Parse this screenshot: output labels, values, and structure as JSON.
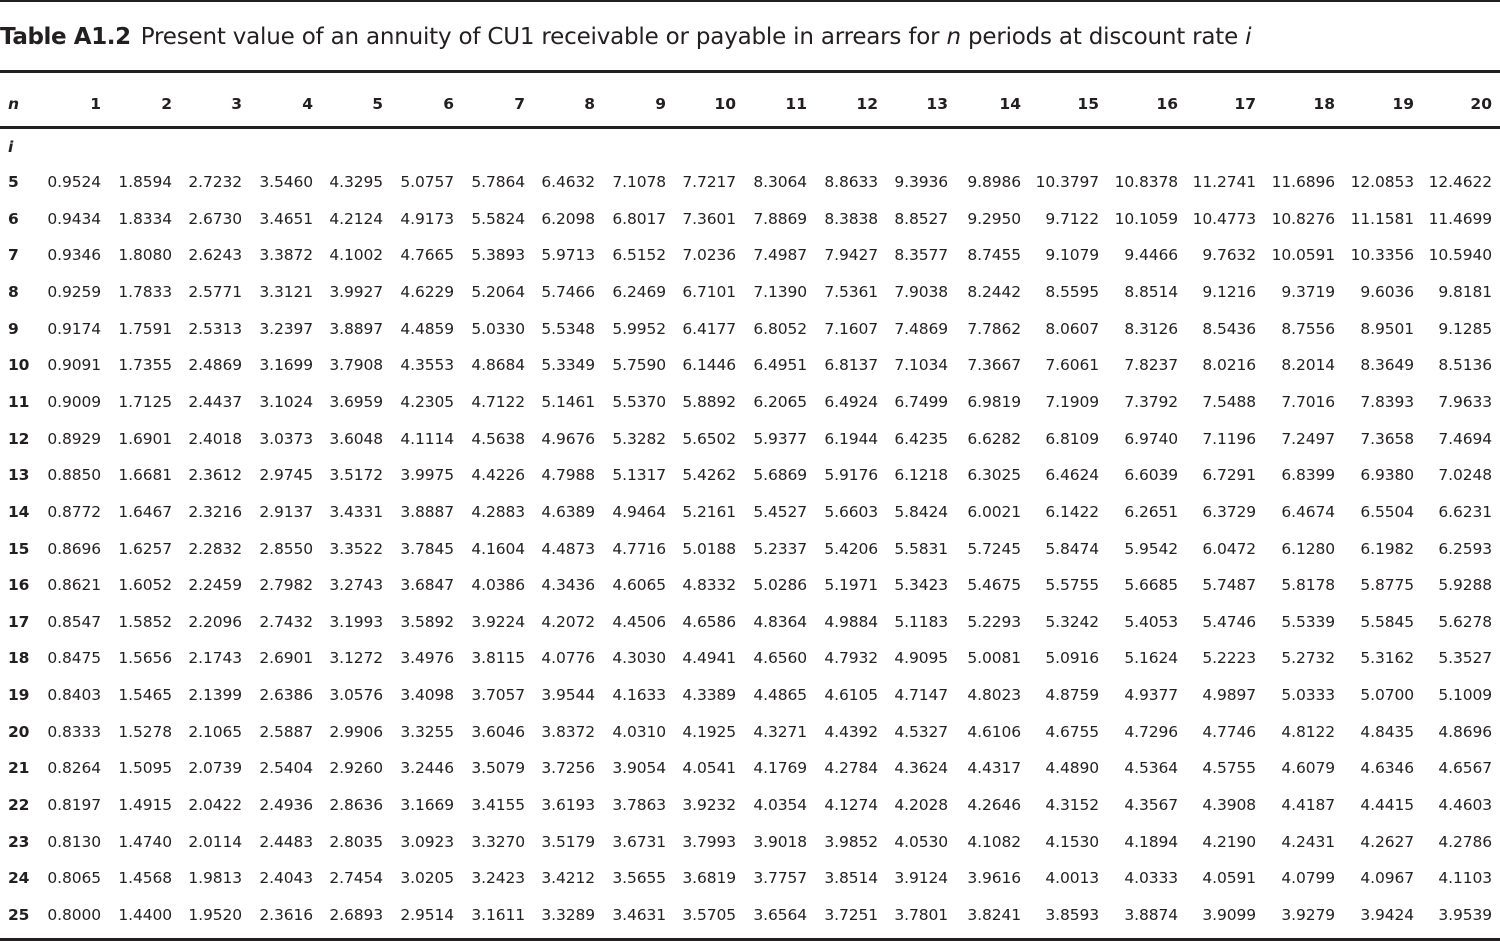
{
  "caption": {
    "label": "Table A1.2",
    "text_before_n": "Present value of an annuity of CU1 receivable or payable in arrears for ",
    "n_symbol": "n",
    "text_before_i": " periods at discount rate ",
    "i_symbol": "i"
  },
  "table": {
    "column_header_label": "n",
    "row_header_label": "i",
    "periods": [
      "1",
      "2",
      "3",
      "4",
      "5",
      "6",
      "7",
      "8",
      "9",
      "10",
      "11",
      "12",
      "13",
      "14",
      "15",
      "16",
      "17",
      "18",
      "19",
      "20"
    ],
    "rows": [
      {
        "rate": "5",
        "values": [
          "0.9524",
          "1.8594",
          "2.7232",
          "3.5460",
          "4.3295",
          "5.0757",
          "5.7864",
          "6.4632",
          "7.1078",
          "7.7217",
          "8.3064",
          "8.8633",
          "9.3936",
          "9.8986",
          "10.3797",
          "10.8378",
          "11.2741",
          "11.6896",
          "12.0853",
          "12.4622"
        ]
      },
      {
        "rate": "6",
        "values": [
          "0.9434",
          "1.8334",
          "2.6730",
          "3.4651",
          "4.2124",
          "4.9173",
          "5.5824",
          "6.2098",
          "6.8017",
          "7.3601",
          "7.8869",
          "8.3838",
          "8.8527",
          "9.2950",
          "9.7122",
          "10.1059",
          "10.4773",
          "10.8276",
          "11.1581",
          "11.4699"
        ]
      },
      {
        "rate": "7",
        "values": [
          "0.9346",
          "1.8080",
          "2.6243",
          "3.3872",
          "4.1002",
          "4.7665",
          "5.3893",
          "5.9713",
          "6.5152",
          "7.0236",
          "7.4987",
          "7.9427",
          "8.3577",
          "8.7455",
          "9.1079",
          "9.4466",
          "9.7632",
          "10.0591",
          "10.3356",
          "10.5940"
        ]
      },
      {
        "rate": "8",
        "values": [
          "0.9259",
          "1.7833",
          "2.5771",
          "3.3121",
          "3.9927",
          "4.6229",
          "5.2064",
          "5.7466",
          "6.2469",
          "6.7101",
          "7.1390",
          "7.5361",
          "7.9038",
          "8.2442",
          "8.5595",
          "8.8514",
          "9.1216",
          "9.3719",
          "9.6036",
          "9.8181"
        ]
      },
      {
        "rate": "9",
        "values": [
          "0.9174",
          "1.7591",
          "2.5313",
          "3.2397",
          "3.8897",
          "4.4859",
          "5.0330",
          "5.5348",
          "5.9952",
          "6.4177",
          "6.8052",
          "7.1607",
          "7.4869",
          "7.7862",
          "8.0607",
          "8.3126",
          "8.5436",
          "8.7556",
          "8.9501",
          "9.1285"
        ]
      },
      {
        "rate": "10",
        "values": [
          "0.9091",
          "1.7355",
          "2.4869",
          "3.1699",
          "3.7908",
          "4.3553",
          "4.8684",
          "5.3349",
          "5.7590",
          "6.1446",
          "6.4951",
          "6.8137",
          "7.1034",
          "7.3667",
          "7.6061",
          "7.8237",
          "8.0216",
          "8.2014",
          "8.3649",
          "8.5136"
        ]
      },
      {
        "rate": "11",
        "values": [
          "0.9009",
          "1.7125",
          "2.4437",
          "3.1024",
          "3.6959",
          "4.2305",
          "4.7122",
          "5.1461",
          "5.5370",
          "5.8892",
          "6.2065",
          "6.4924",
          "6.7499",
          "6.9819",
          "7.1909",
          "7.3792",
          "7.5488",
          "7.7016",
          "7.8393",
          "7.9633"
        ]
      },
      {
        "rate": "12",
        "values": [
          "0.8929",
          "1.6901",
          "2.4018",
          "3.0373",
          "3.6048",
          "4.1114",
          "4.5638",
          "4.9676",
          "5.3282",
          "5.6502",
          "5.9377",
          "6.1944",
          "6.4235",
          "6.6282",
          "6.8109",
          "6.9740",
          "7.1196",
          "7.2497",
          "7.3658",
          "7.4694"
        ]
      },
      {
        "rate": "13",
        "values": [
          "0.8850",
          "1.6681",
          "2.3612",
          "2.9745",
          "3.5172",
          "3.9975",
          "4.4226",
          "4.7988",
          "5.1317",
          "5.4262",
          "5.6869",
          "5.9176",
          "6.1218",
          "6.3025",
          "6.4624",
          "6.6039",
          "6.7291",
          "6.8399",
          "6.9380",
          "7.0248"
        ]
      },
      {
        "rate": "14",
        "values": [
          "0.8772",
          "1.6467",
          "2.3216",
          "2.9137",
          "3.4331",
          "3.8887",
          "4.2883",
          "4.6389",
          "4.9464",
          "5.2161",
          "5.4527",
          "5.6603",
          "5.8424",
          "6.0021",
          "6.1422",
          "6.2651",
          "6.3729",
          "6.4674",
          "6.5504",
          "6.6231"
        ]
      },
      {
        "rate": "15",
        "values": [
          "0.8696",
          "1.6257",
          "2.2832",
          "2.8550",
          "3.3522",
          "3.7845",
          "4.1604",
          "4.4873",
          "4.7716",
          "5.0188",
          "5.2337",
          "5.4206",
          "5.5831",
          "5.7245",
          "5.8474",
          "5.9542",
          "6.0472",
          "6.1280",
          "6.1982",
          "6.2593"
        ]
      },
      {
        "rate": "16",
        "values": [
          "0.8621",
          "1.6052",
          "2.2459",
          "2.7982",
          "3.2743",
          "3.6847",
          "4.0386",
          "4.3436",
          "4.6065",
          "4.8332",
          "5.0286",
          "5.1971",
          "5.3423",
          "5.4675",
          "5.5755",
          "5.6685",
          "5.7487",
          "5.8178",
          "5.8775",
          "5.9288"
        ]
      },
      {
        "rate": "17",
        "values": [
          "0.8547",
          "1.5852",
          "2.2096",
          "2.7432",
          "3.1993",
          "3.5892",
          "3.9224",
          "4.2072",
          "4.4506",
          "4.6586",
          "4.8364",
          "4.9884",
          "5.1183",
          "5.2293",
          "5.3242",
          "5.4053",
          "5.4746",
          "5.5339",
          "5.5845",
          "5.6278"
        ]
      },
      {
        "rate": "18",
        "values": [
          "0.8475",
          "1.5656",
          "2.1743",
          "2.6901",
          "3.1272",
          "3.4976",
          "3.8115",
          "4.0776",
          "4.3030",
          "4.4941",
          "4.6560",
          "4.7932",
          "4.9095",
          "5.0081",
          "5.0916",
          "5.1624",
          "5.2223",
          "5.2732",
          "5.3162",
          "5.3527"
        ]
      },
      {
        "rate": "19",
        "values": [
          "0.8403",
          "1.5465",
          "2.1399",
          "2.6386",
          "3.0576",
          "3.4098",
          "3.7057",
          "3.9544",
          "4.1633",
          "4.3389",
          "4.4865",
          "4.6105",
          "4.7147",
          "4.8023",
          "4.8759",
          "4.9377",
          "4.9897",
          "5.0333",
          "5.0700",
          "5.1009"
        ]
      },
      {
        "rate": "20",
        "values": [
          "0.8333",
          "1.5278",
          "2.1065",
          "2.5887",
          "2.9906",
          "3.3255",
          "3.6046",
          "3.8372",
          "4.0310",
          "4.1925",
          "4.3271",
          "4.4392",
          "4.5327",
          "4.6106",
          "4.6755",
          "4.7296",
          "4.7746",
          "4.8122",
          "4.8435",
          "4.8696"
        ]
      },
      {
        "rate": "21",
        "values": [
          "0.8264",
          "1.5095",
          "2.0739",
          "2.5404",
          "2.9260",
          "3.2446",
          "3.5079",
          "3.7256",
          "3.9054",
          "4.0541",
          "4.1769",
          "4.2784",
          "4.3624",
          "4.4317",
          "4.4890",
          "4.5364",
          "4.5755",
          "4.6079",
          "4.6346",
          "4.6567"
        ]
      },
      {
        "rate": "22",
        "values": [
          "0.8197",
          "1.4915",
          "2.0422",
          "2.4936",
          "2.8636",
          "3.1669",
          "3.4155",
          "3.6193",
          "3.7863",
          "3.9232",
          "4.0354",
          "4.1274",
          "4.2028",
          "4.2646",
          "4.3152",
          "4.3567",
          "4.3908",
          "4.4187",
          "4.4415",
          "4.4603"
        ]
      },
      {
        "rate": "23",
        "values": [
          "0.8130",
          "1.4740",
          "2.0114",
          "2.4483",
          "2.8035",
          "3.0923",
          "3.3270",
          "3.5179",
          "3.6731",
          "3.7993",
          "3.9018",
          "3.9852",
          "4.0530",
          "4.1082",
          "4.1530",
          "4.1894",
          "4.2190",
          "4.2431",
          "4.2627",
          "4.2786"
        ]
      },
      {
        "rate": "24",
        "values": [
          "0.8065",
          "1.4568",
          "1.9813",
          "2.4043",
          "2.7454",
          "3.0205",
          "3.2423",
          "3.4212",
          "3.5655",
          "3.6819",
          "3.7757",
          "3.8514",
          "3.9124",
          "3.9616",
          "4.0013",
          "4.0333",
          "4.0591",
          "4.0799",
          "4.0967",
          "4.1103"
        ]
      },
      {
        "rate": "25",
        "values": [
          "0.8000",
          "1.4400",
          "1.9520",
          "2.3616",
          "2.6893",
          "2.9514",
          "3.1611",
          "3.3289",
          "3.4631",
          "3.5705",
          "3.6564",
          "3.7251",
          "3.7801",
          "3.8241",
          "3.8593",
          "3.8874",
          "3.9099",
          "3.9279",
          "3.9424",
          "3.9539"
        ]
      }
    ]
  }
}
